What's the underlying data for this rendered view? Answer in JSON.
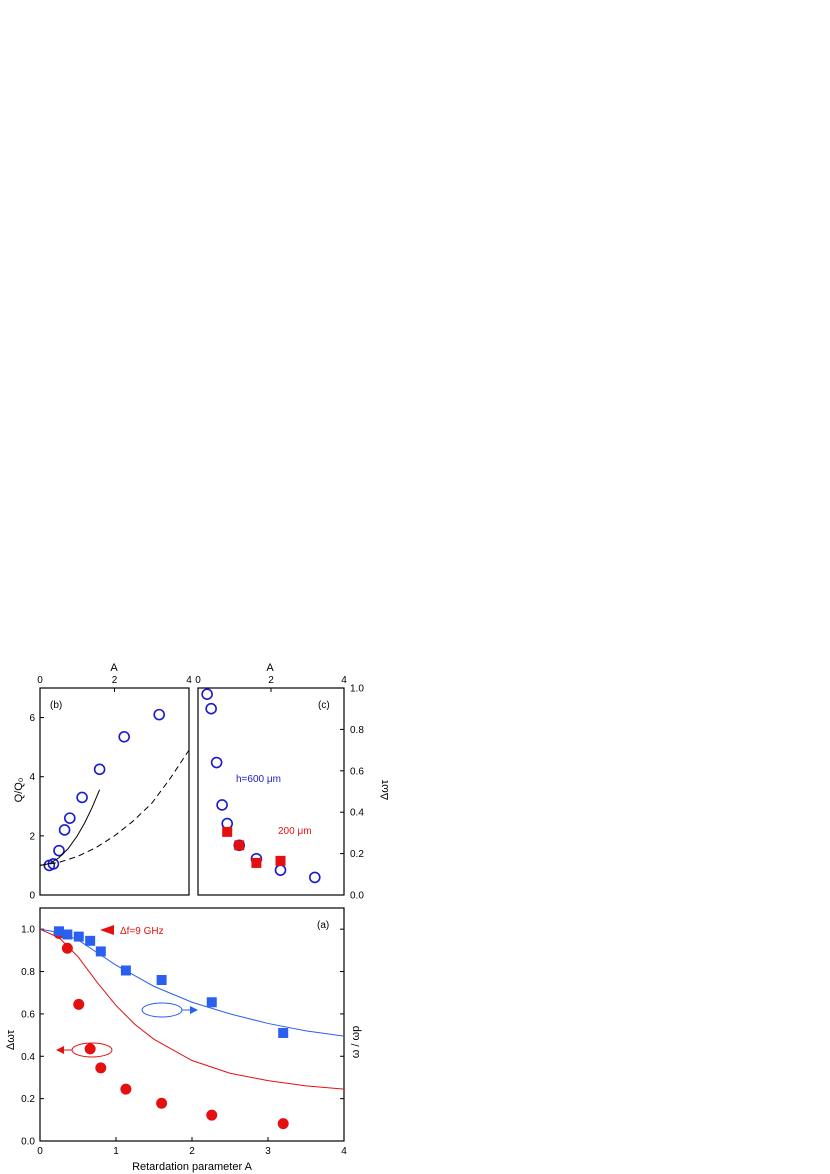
{
  "chart_data": [
    {
      "type": "scatter",
      "panel_label": "(a)",
      "xlabel": "Retardation parameter A",
      "ylabel_left": "Δωτ",
      "ylabel_right": "ω / ωp",
      "xlim": [
        0,
        4
      ],
      "ylim": [
        0,
        1.1
      ],
      "xticks": [
        "0",
        "1",
        "2",
        "3",
        "4"
      ],
      "yticks": [
        "0.0",
        "0.2",
        "0.4",
        "0.6",
        "0.8",
        "1.0"
      ],
      "annotation": "Δf=9 GHz",
      "series": [
        {
          "marker": "circle",
          "color": "#e41010",
          "x": [
            0.25,
            0.36,
            0.51,
            0.66,
            0.8,
            1.13,
            1.6,
            2.26,
            3.2
          ],
          "y": [
            0.98,
            0.91,
            0.645,
            0.435,
            0.345,
            0.245,
            0.178,
            0.122,
            0.082
          ]
        },
        {
          "marker": "square",
          "color": "#2a5ff0",
          "x": [
            0.25,
            0.36,
            0.51,
            0.66,
            0.8,
            1.13,
            1.6,
            2.26,
            3.2
          ],
          "y": [
            0.99,
            0.975,
            0.965,
            0.945,
            0.895,
            0.805,
            0.76,
            0.655,
            0.51
          ]
        },
        {
          "marker": "none",
          "color": "#2a5ff0",
          "x": [
            0,
            0.25,
            0.5,
            0.75,
            1.0,
            1.5,
            2.0,
            2.5,
            3.0,
            3.5,
            4.0
          ],
          "y": [
            1.0,
            0.985,
            0.95,
            0.89,
            0.83,
            0.73,
            0.655,
            0.6,
            0.555,
            0.52,
            0.495
          ]
        },
        {
          "marker": "none",
          "color": "#e41010",
          "x": [
            0,
            0.25,
            0.5,
            0.75,
            1.0,
            1.25,
            1.5,
            2.0,
            2.5,
            3.0,
            3.5,
            4.0
          ],
          "y": [
            1.0,
            0.96,
            0.87,
            0.75,
            0.64,
            0.55,
            0.48,
            0.38,
            0.32,
            0.285,
            0.26,
            0.245
          ]
        }
      ]
    },
    {
      "type": "scatter",
      "panel_label": "(b)",
      "xlabel_top": "A",
      "ylabel": "Q/Q₀",
      "xlim": [
        0,
        4
      ],
      "ylim": [
        0,
        7
      ],
      "xticks": [
        "0",
        "2",
        "4"
      ],
      "yticks": [
        "0",
        "2",
        "4",
        "6"
      ],
      "series": [
        {
          "marker": "open-circle",
          "color": "#1a1acc",
          "x": [
            0.25,
            0.36,
            0.51,
            0.66,
            0.8,
            1.13,
            1.6,
            2.26,
            3.2
          ],
          "y": [
            1.0,
            1.05,
            1.5,
            2.2,
            2.6,
            3.3,
            4.25,
            5.35,
            6.1
          ]
        },
        {
          "marker": "none",
          "line": "solid",
          "color": "#000000",
          "x": [
            0,
            0.25,
            0.5,
            0.75,
            1.0,
            1.2,
            1.4,
            1.6
          ],
          "y": [
            1.0,
            1.06,
            1.25,
            1.56,
            2.0,
            2.44,
            2.96,
            3.56
          ]
        },
        {
          "marker": "none",
          "line": "dashed",
          "color": "#000000",
          "x": [
            0,
            0.5,
            1.0,
            1.5,
            2.0,
            2.5,
            3.0,
            3.5,
            4.0
          ],
          "y": [
            1.0,
            1.1,
            1.3,
            1.6,
            2.0,
            2.5,
            3.1,
            3.95,
            4.9
          ]
        }
      ]
    },
    {
      "type": "scatter",
      "panel_label": "(c)",
      "xlabel_top": "A",
      "ylabel_right": "Δωτ",
      "xlim": [
        0,
        4
      ],
      "ylim": [
        0,
        1.0
      ],
      "xticks": [
        "0",
        "2",
        "4"
      ],
      "yticks": [
        "0.0",
        "0.2",
        "0.4",
        "0.6",
        "0.8",
        "1.0"
      ],
      "series": [
        {
          "name": "h=600 μm",
          "marker": "open-circle",
          "color": "#1a1acc",
          "x": [
            0.25,
            0.36,
            0.51,
            0.66,
            0.8,
            1.13,
            1.6,
            2.26,
            3.2
          ],
          "y": [
            0.97,
            0.9,
            0.64,
            0.435,
            0.345,
            0.24,
            0.175,
            0.12,
            0.085
          ]
        },
        {
          "name": "200 μm",
          "marker": "square",
          "color": "#e41010",
          "x": [
            0.8,
            1.13,
            1.6,
            2.26
          ],
          "y": [
            0.305,
            0.24,
            0.155,
            0.165
          ]
        }
      ]
    }
  ]
}
